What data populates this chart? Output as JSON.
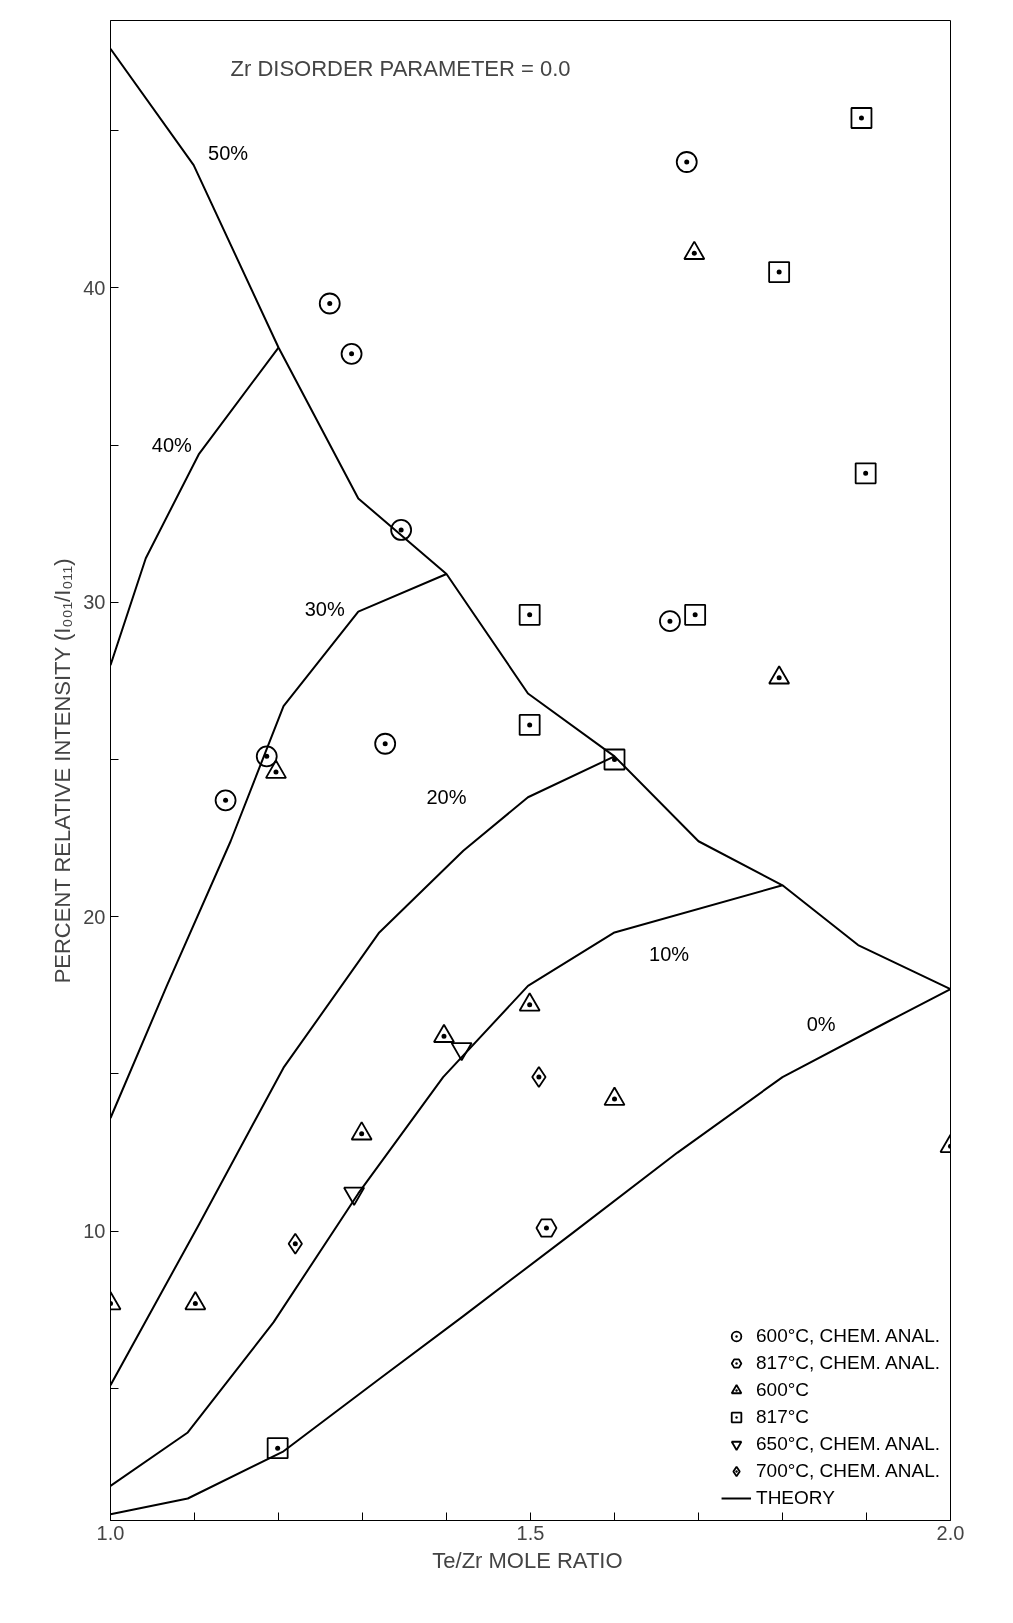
{
  "chart_data": {
    "type": "scatter",
    "xlabel": "Te/Zr  MOLE RATIO",
    "ylabel": "PERCENT RELATIVE INTENSITY (I₀₀₁/I₀₁₁)",
    "xlim": [
      1.0,
      2.0
    ],
    "ylim": [
      0.8,
      48.5
    ],
    "xticks": [
      {
        "value": 1.0,
        "label": "1.0"
      },
      {
        "value": 1.1,
        "label": null
      },
      {
        "value": 1.2,
        "label": null
      },
      {
        "value": 1.3,
        "label": null
      },
      {
        "value": 1.4,
        "label": null
      },
      {
        "value": 1.5,
        "label": "1.5"
      },
      {
        "value": 1.6,
        "label": null
      },
      {
        "value": 1.7,
        "label": null
      },
      {
        "value": 1.8,
        "label": null
      },
      {
        "value": 1.9,
        "label": null
      },
      {
        "value": 2.0,
        "label": "2.0"
      }
    ],
    "yticks": [
      {
        "value": 5,
        "label": null
      },
      10,
      {
        "value": 15,
        "label": null
      },
      20,
      {
        "value": 25,
        "label": null
      },
      30,
      {
        "value": 35,
        "label": null
      },
      40,
      {
        "value": 45,
        "label": null
      }
    ],
    "grid": false,
    "legend": "bottom right",
    "series": [
      {
        "name": "600°C, CHEM. ANAL.",
        "marker": "circle",
        "color": "#000000",
        "x": [
          1.686,
          1.261,
          1.287,
          1.346,
          1.666,
          1.327,
          1.186,
          1.137
        ],
        "values": [
          44.0,
          39.5,
          37.9,
          32.3,
          29.4,
          25.5,
          25.1,
          23.7
        ]
      },
      {
        "name": "817°C, CHEM. ANAL.",
        "color": "#000000",
        "x": [
          1.519
        ],
        "values": [
          10.1
        ]
      },
      {
        "name": "600°C",
        "marker": "triangle",
        "color": "#000000",
        "x": [
          1.695,
          1.796,
          1.197,
          1.499,
          1.397,
          1.6,
          1.299,
          2.0,
          1.101,
          1.0
        ],
        "values": [
          41.1,
          27.6,
          24.6,
          17.2,
          16.2,
          14.2,
          13.1,
          12.7,
          7.7,
          7.7
        ]
      },
      {
        "name": "817°C",
        "marker": "square",
        "color": "#000000",
        "x": [
          1.894,
          1.796,
          1.899,
          1.499,
          1.696,
          1.499,
          1.6,
          1.199
        ],
        "values": [
          45.4,
          40.5,
          34.1,
          29.6,
          29.6,
          26.1,
          25.0,
          3.1
        ]
      },
      {
        "name": "650°C, CHEM. ANAL.",
        "color": "#000000",
        "x": [
          1.418,
          1.29
        ],
        "values": [
          15.8,
          11.2
        ]
      },
      {
        "name": "700°C, CHEM. ANAL.",
        "marker": "diamond",
        "color": "#000000",
        "x": [
          1.51,
          1.22
        ],
        "values": [
          14.9,
          9.6
        ]
      },
      {
        "name": "THEORY",
        "type": "line",
        "color": "#000000",
        "x": [
          1.0,
          1.099,
          1.2,
          1.295,
          1.4,
          1.497,
          1.6,
          1.7,
          1.8,
          1.89,
          2.0
        ],
        "values": [
          47.6,
          43.9,
          38.1,
          33.3,
          30.9,
          27.1,
          25.1,
          22.4,
          21.0,
          19.1,
          17.7
        ]
      },
      {
        "type": "line",
        "color": "#000000",
        "x": [
          1.0,
          1.042,
          1.105,
          1.2
        ],
        "values": [
          28.0,
          31.4,
          34.7,
          38.1
        ]
      },
      {
        "type": "line",
        "color": "#000000",
        "x": [
          1.0,
          1.067,
          1.143,
          1.206,
          1.295,
          1.4
        ],
        "values": [
          13.6,
          17.8,
          22.4,
          26.7,
          29.7,
          30.9
        ]
      },
      {
        "type": "line",
        "color": "#000000",
        "x": [
          1.0,
          1.105,
          1.206,
          1.32,
          1.42,
          1.497,
          1.6
        ],
        "values": [
          5.1,
          10.2,
          15.2,
          19.5,
          22.1,
          23.8,
          25.1
        ]
      },
      {
        "type": "line",
        "color": "#000000",
        "x": [
          1.0,
          1.092,
          1.194,
          1.295,
          1.396,
          1.497,
          1.6,
          1.8
        ],
        "values": [
          1.9,
          3.6,
          7.1,
          11.2,
          14.9,
          17.8,
          19.5,
          21.0
        ]
      },
      {
        "type": "line",
        "color": "#000000",
        "x": [
          1.0,
          1.092,
          1.206,
          1.32,
          1.42,
          1.548,
          1.675,
          1.8,
          1.928,
          2.0
        ],
        "values": [
          1.0,
          1.5,
          3.0,
          5.3,
          7.3,
          9.9,
          12.5,
          14.9,
          16.7,
          17.7
        ]
      }
    ],
    "annotations": [
      "Zr  DISORDER PARAMETER = 0.0",
      "50%",
      "40%",
      "30%",
      "20%",
      "10%",
      "0%"
    ]
  }
}
